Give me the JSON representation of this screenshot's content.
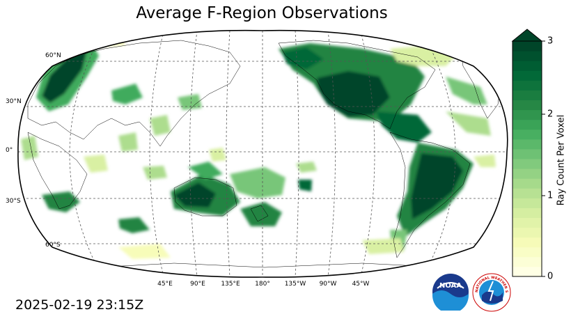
{
  "title": "Average F-Region Observations",
  "timestamp": "2025-02-19 23:15Z",
  "colorbar": {
    "label": "Ray Count Per Voxel",
    "ticks": [
      "0",
      "1",
      "2",
      "3"
    ],
    "min": 0,
    "max": 3,
    "extend": "max",
    "colors": [
      "#ffffe5",
      "#f7fcb9",
      "#d9f0a3",
      "#addd8e",
      "#78c679",
      "#41ab5d",
      "#238443",
      "#006837",
      "#004529"
    ]
  },
  "map": {
    "projection": "Robinson",
    "central_longitude": 180,
    "lat_labels": [
      "60°N",
      "30°N",
      "0°",
      "30°S",
      "60°S"
    ],
    "lon_labels": [
      "45°E",
      "90°E",
      "135°E",
      "180°",
      "135°W",
      "90°W",
      "45°W"
    ],
    "gridlines": true
  },
  "logos": {
    "noaa": "NOAA",
    "nws": "NATIONAL WEATHER SERVICE"
  }
}
